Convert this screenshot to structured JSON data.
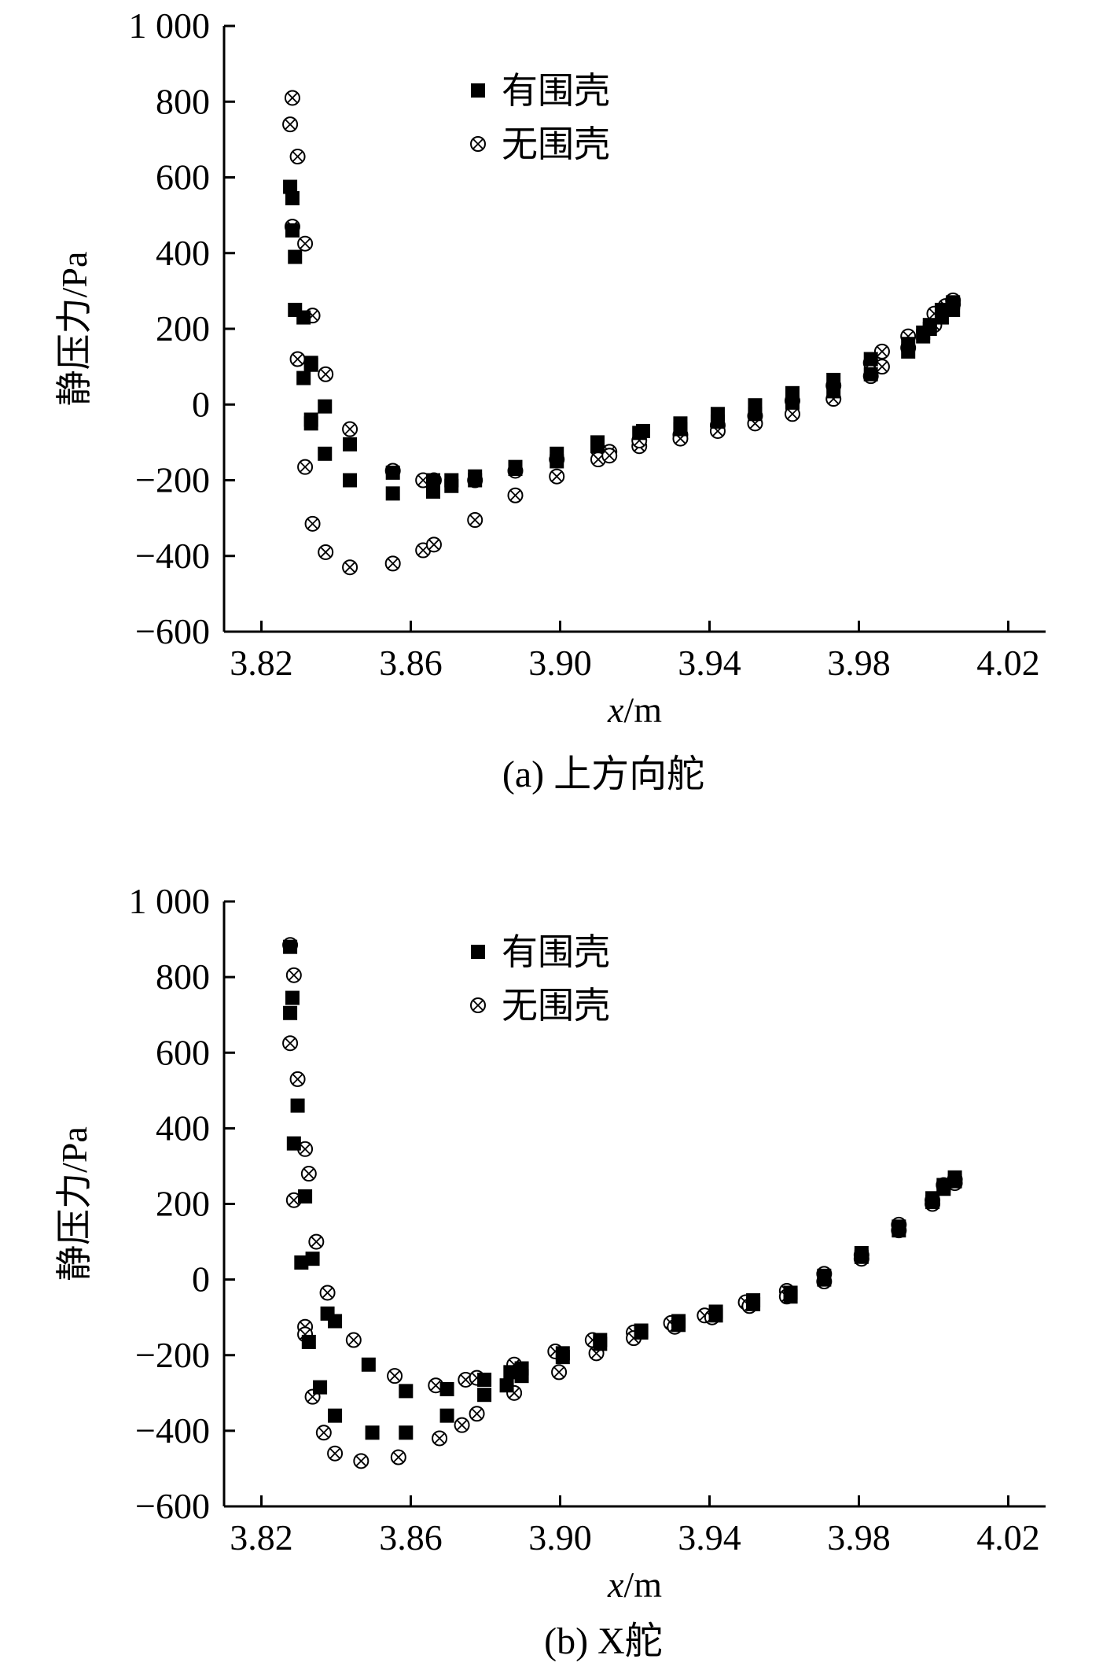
{
  "chart_data": [
    {
      "type": "scatter",
      "caption": "(a) 上方向舵",
      "xlabel_italic": "x",
      "xlabel_unit": "/m",
      "ylabel": "静压力/Pa",
      "xlim": [
        3.81,
        4.03
      ],
      "ylim": [
        -600,
        1000
      ],
      "xticks": [
        3.82,
        3.86,
        3.9,
        3.94,
        3.98,
        4.02
      ],
      "xtick_labels": [
        "3.82",
        "3.86",
        "3.90",
        "3.94",
        "3.98",
        "4.02"
      ],
      "yticks": [
        1000,
        800,
        600,
        400,
        200,
        0,
        -200,
        -400,
        -600
      ],
      "ytick_labels": [
        "1 000",
        "800",
        "600",
        "400",
        "200",
        "0",
        "−200",
        "−400",
        "−600"
      ],
      "legend_position": "top-center",
      "series": [
        {
          "name": "有围壳",
          "marker": "filled-square",
          "points": [
            [
              3.8277,
              575
            ],
            [
              3.8283,
              545
            ],
            [
              3.8283,
              460
            ],
            [
              3.829,
              390
            ],
            [
              3.829,
              250
            ],
            [
              3.8313,
              230
            ],
            [
              3.8313,
              70
            ],
            [
              3.8333,
              105
            ],
            [
              3.8333,
              110
            ],
            [
              3.8333,
              -40
            ],
            [
              3.8333,
              -50
            ],
            [
              3.837,
              -130
            ],
            [
              3.837,
              -5
            ],
            [
              3.8437,
              -105
            ],
            [
              3.8437,
              -200
            ],
            [
              3.8552,
              -235
            ],
            [
              3.8552,
              -180
            ],
            [
              3.866,
              -230
            ],
            [
              3.866,
              -200
            ],
            [
              3.8709,
              -215
            ],
            [
              3.8709,
              -200
            ],
            [
              3.8772,
              -190
            ],
            [
              3.8772,
              -200
            ],
            [
              3.888,
              -165
            ],
            [
              3.888,
              -170
            ],
            [
              3.8991,
              -130
            ],
            [
              3.8991,
              -150
            ],
            [
              3.91,
              -100
            ],
            [
              3.91,
              -110
            ],
            [
              3.9212,
              -75
            ],
            [
              3.9222,
              -70
            ],
            [
              3.9322,
              -50
            ],
            [
              3.9322,
              -65
            ],
            [
              3.9422,
              -25
            ],
            [
              3.9422,
              -45
            ],
            [
              3.9522,
              -2
            ],
            [
              3.9522,
              -25
            ],
            [
              3.9622,
              30
            ],
            [
              3.9622,
              5
            ],
            [
              3.9732,
              65
            ],
            [
              3.9732,
              35
            ],
            [
              3.9832,
              120
            ],
            [
              3.9832,
              80
            ],
            [
              3.9932,
              140
            ],
            [
              3.9932,
              160
            ],
            [
              3.9972,
              180
            ],
            [
              3.9972,
              190
            ],
            [
              3.999,
              200
            ],
            [
              3.999,
              210
            ],
            [
              4.0022,
              230
            ],
            [
              4.0022,
              250
            ],
            [
              4.0052,
              250
            ],
            [
              4.0052,
              270
            ]
          ]
        },
        {
          "name": "无围壳",
          "marker": "circle-x",
          "points": [
            [
              3.8283,
              810
            ],
            [
              3.8277,
              740
            ],
            [
              3.8297,
              655
            ],
            [
              3.8283,
              470
            ],
            [
              3.8317,
              425
            ],
            [
              3.8297,
              120
            ],
            [
              3.8337,
              235
            ],
            [
              3.8317,
              -165
            ],
            [
              3.8337,
              -315
            ],
            [
              3.8372,
              80
            ],
            [
              3.8372,
              -390
            ],
            [
              3.8437,
              -65
            ],
            [
              3.8437,
              -430
            ],
            [
              3.8552,
              -175
            ],
            [
              3.8552,
              -420
            ],
            [
              3.8633,
              -200
            ],
            [
              3.8633,
              -385
            ],
            [
              3.8662,
              -370
            ],
            [
              3.8662,
              -200
            ],
            [
              3.8772,
              -200
            ],
            [
              3.8772,
              -305
            ],
            [
              3.888,
              -175
            ],
            [
              3.888,
              -240
            ],
            [
              3.8991,
              -145
            ],
            [
              3.8991,
              -190
            ],
            [
              3.9102,
              -120
            ],
            [
              3.9102,
              -145
            ],
            [
              3.9132,
              -125
            ],
            [
              3.9132,
              -135
            ],
            [
              3.9212,
              -110
            ],
            [
              3.9212,
              -95
            ],
            [
              3.9322,
              -80
            ],
            [
              3.9322,
              -90
            ],
            [
              3.9422,
              -55
            ],
            [
              3.9422,
              -70
            ],
            [
              3.9522,
              -30
            ],
            [
              3.9522,
              -50
            ],
            [
              3.9622,
              10
            ],
            [
              3.9622,
              -25
            ],
            [
              3.9732,
              50
            ],
            [
              3.9732,
              15
            ],
            [
              3.9832,
              110
            ],
            [
              3.9832,
              75
            ],
            [
              3.9862,
              140
            ],
            [
              3.9862,
              100
            ],
            [
              3.9932,
              180
            ],
            [
              3.9932,
              150
            ],
            [
              4.0002,
              210
            ],
            [
              4.0002,
              240
            ],
            [
              4.0032,
              250
            ],
            [
              4.0032,
              260
            ],
            [
              4.0052,
              275
            ],
            [
              4.0052,
              265
            ]
          ]
        }
      ]
    },
    {
      "type": "scatter",
      "caption": "(b) X舵",
      "xlabel_italic": "x",
      "xlabel_unit": "/m",
      "ylabel": "静压力/Pa",
      "xlim": [
        3.81,
        4.03
      ],
      "ylim": [
        -600,
        1000
      ],
      "xticks": [
        3.82,
        3.86,
        3.9,
        3.94,
        3.98,
        4.02
      ],
      "xtick_labels": [
        "3.82",
        "3.86",
        "3.90",
        "3.94",
        "3.98",
        "4.02"
      ],
      "yticks": [
        1000,
        800,
        600,
        400,
        200,
        0,
        -200,
        -400,
        -600
      ],
      "ytick_labels": [
        "1 000",
        "800",
        "600",
        "400",
        "200",
        "0",
        "−200",
        "−400",
        "−600"
      ],
      "legend_position": "top-center",
      "series": [
        {
          "name": "有围壳",
          "marker": "filled-square",
          "points": [
            [
              3.8277,
              880
            ],
            [
              3.8283,
              745
            ],
            [
              3.8277,
              705
            ],
            [
              3.8297,
              460
            ],
            [
              3.8287,
              360
            ],
            [
              3.8317,
              220
            ],
            [
              3.8307,
              45
            ],
            [
              3.8337,
              55
            ],
            [
              3.8327,
              -165
            ],
            [
              3.8357,
              -285
            ],
            [
              3.8377,
              -90
            ],
            [
              3.8397,
              -110
            ],
            [
              3.8397,
              -360
            ],
            [
              3.8487,
              -225
            ],
            [
              3.8497,
              -405
            ],
            [
              3.8587,
              -295
            ],
            [
              3.8587,
              -405
            ],
            [
              3.8697,
              -290
            ],
            [
              3.8697,
              -360
            ],
            [
              3.8797,
              -265
            ],
            [
              3.8797,
              -305
            ],
            [
              3.8857,
              -280
            ],
            [
              3.8867,
              -245
            ],
            [
              3.8897,
              -235
            ],
            [
              3.8897,
              -255
            ],
            [
              3.9007,
              -195
            ],
            [
              3.9007,
              -205
            ],
            [
              3.9107,
              -160
            ],
            [
              3.9107,
              -170
            ],
            [
              3.9217,
              -135
            ],
            [
              3.9217,
              -140
            ],
            [
              3.9317,
              -110
            ],
            [
              3.9317,
              -120
            ],
            [
              3.9417,
              -85
            ],
            [
              3.9417,
              -95
            ],
            [
              3.9517,
              -55
            ],
            [
              3.9517,
              -65
            ],
            [
              3.9617,
              -35
            ],
            [
              3.9617,
              -45
            ],
            [
              3.9707,
              10
            ],
            [
              3.9707,
              0
            ],
            [
              3.9807,
              70
            ],
            [
              3.9807,
              60
            ],
            [
              3.9907,
              140
            ],
            [
              3.9907,
              130
            ],
            [
              3.9997,
              215
            ],
            [
              3.9997,
              205
            ],
            [
              4.0027,
              250
            ],
            [
              4.0027,
              240
            ],
            [
              4.0057,
              270
            ],
            [
              4.0057,
              260
            ]
          ]
        },
        {
          "name": "无围壳",
          "marker": "circle-x",
          "points": [
            [
              3.8277,
              885
            ],
            [
              3.8287,
              805
            ],
            [
              3.8277,
              625
            ],
            [
              3.8297,
              530
            ],
            [
              3.8287,
              210
            ],
            [
              3.8317,
              345
            ],
            [
              3.8327,
              280
            ],
            [
              3.8317,
              -125
            ],
            [
              3.8317,
              -145
            ],
            [
              3.8337,
              -310
            ],
            [
              3.8347,
              100
            ],
            [
              3.8367,
              -405
            ],
            [
              3.8377,
              -35
            ],
            [
              3.8397,
              -460
            ],
            [
              3.8447,
              -160
            ],
            [
              3.8467,
              -480
            ],
            [
              3.8557,
              -255
            ],
            [
              3.8567,
              -470
            ],
            [
              3.8667,
              -280
            ],
            [
              3.8677,
              -420
            ],
            [
              3.8737,
              -385
            ],
            [
              3.8747,
              -265
            ],
            [
              3.8777,
              -260
            ],
            [
              3.8777,
              -355
            ],
            [
              3.8877,
              -225
            ],
            [
              3.8877,
              -300
            ],
            [
              3.8987,
              -190
            ],
            [
              3.8997,
              -245
            ],
            [
              3.9087,
              -160
            ],
            [
              3.9097,
              -195
            ],
            [
              3.9197,
              -140
            ],
            [
              3.9197,
              -155
            ],
            [
              3.9297,
              -115
            ],
            [
              3.9307,
              -125
            ],
            [
              3.9387,
              -95
            ],
            [
              3.9407,
              -100
            ],
            [
              3.9497,
              -60
            ],
            [
              3.9507,
              -70
            ],
            [
              3.9607,
              -30
            ],
            [
              3.9607,
              -45
            ],
            [
              3.9707,
              15
            ],
            [
              3.9707,
              -5
            ],
            [
              3.9807,
              65
            ],
            [
              3.9807,
              55
            ],
            [
              3.9907,
              145
            ],
            [
              3.9907,
              130
            ],
            [
              3.9997,
              210
            ],
            [
              3.9997,
              200
            ],
            [
              4.0027,
              250
            ],
            [
              4.0057,
              265
            ],
            [
              4.0057,
              255
            ]
          ]
        }
      ]
    }
  ]
}
